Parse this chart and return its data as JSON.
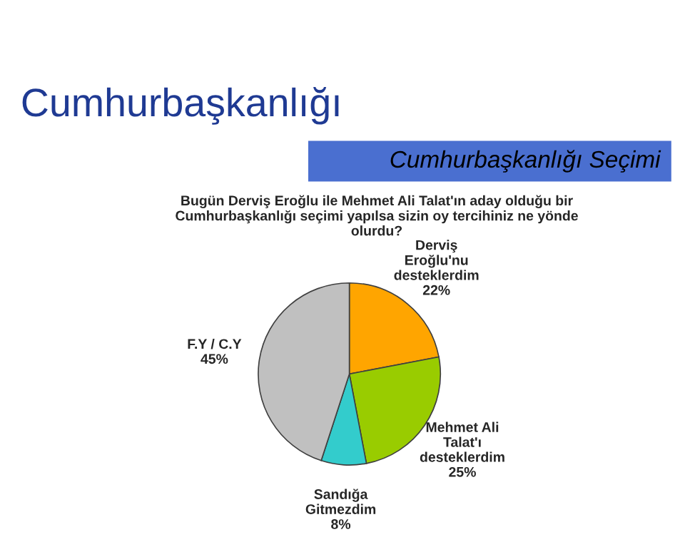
{
  "chart_data": {
    "type": "pie",
    "title": "Cumhurbaşkanlığı",
    "subtitle": "Cumhurbaşkanlığı Seçimi",
    "annotations": [
      "Bugün Derviş Eroğlu ile Mehmet Ali Talat'ın aday olduğu bir\nCumhurbaşkanlığı seçimi yapılsa sizin oy tercihiniz ne yönde\nolurdu?"
    ],
    "categories": [
      "Derviş\nEroğlu'nu\ndesteklerdim",
      "Mehmet Ali\nTalat'ı\ndesteklerdim",
      "Sandığa\nGitmezdim",
      "F.Y / C.Y"
    ],
    "values": [
      22,
      25,
      8,
      45
    ],
    "value_labels": [
      "22%",
      "25%",
      "8%",
      "45%"
    ],
    "colors": [
      "#ffa500",
      "#99cc00",
      "#33cccc",
      "#c0c0c0"
    ]
  }
}
